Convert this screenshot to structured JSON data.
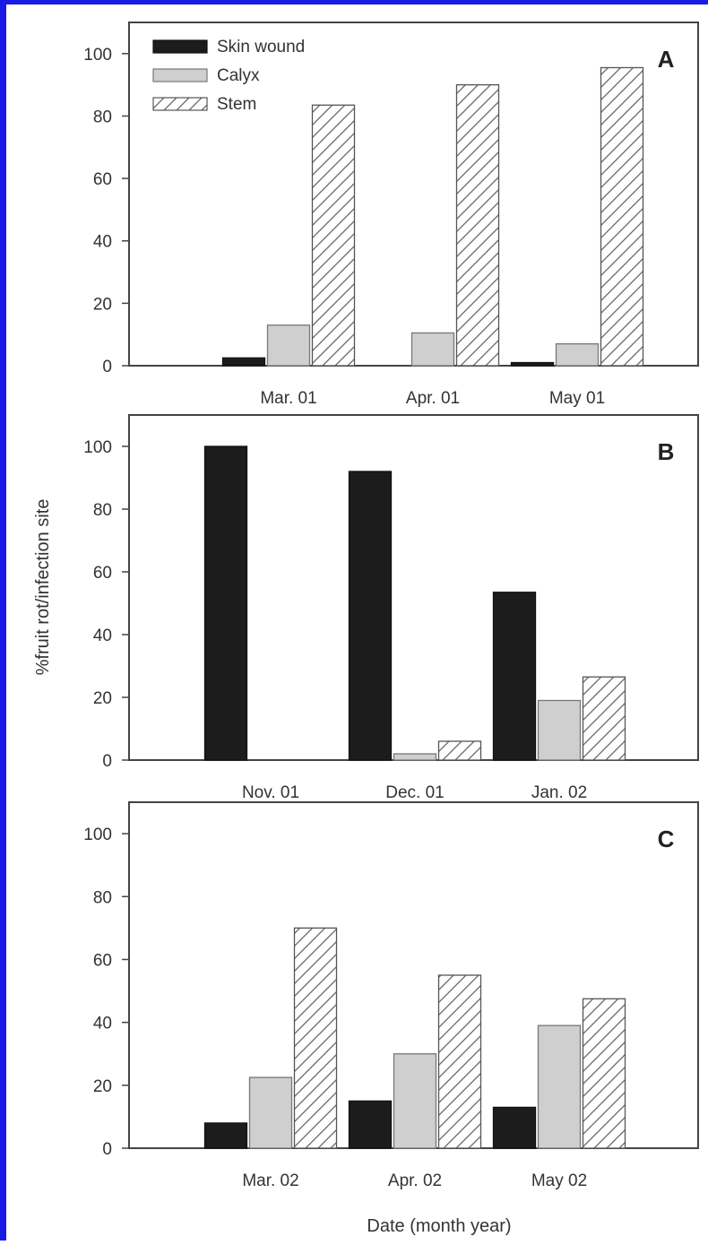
{
  "colors": {
    "skin_wound": "#1c1c1c",
    "calyx": "#cfcfcf",
    "stem": "#ffffff",
    "stem_hatch": "#666666",
    "axis": "#444444",
    "frame": "#1a1ae6"
  },
  "chart_data": [
    {
      "type": "bar",
      "panel": "A",
      "categories": [
        "Mar. 01",
        "Apr. 01",
        "May 01"
      ],
      "series": [
        {
          "name": "Skin wound",
          "values": [
            2.5,
            0,
            1
          ]
        },
        {
          "name": "Calyx",
          "values": [
            13,
            10.5,
            7
          ]
        },
        {
          "name": "Stem",
          "values": [
            83.5,
            90,
            95.5
          ]
        }
      ],
      "ylim": [
        0,
        110
      ],
      "yticks": [
        "0",
        "20",
        "40",
        "60",
        "80",
        "100"
      ],
      "legend": {
        "position": "top-left",
        "entries": [
          "Skin wound",
          "Calyx",
          "Stem"
        ]
      }
    },
    {
      "type": "bar",
      "panel": "B",
      "categories": [
        "Nov. 01",
        "Dec. 01",
        "Jan. 02"
      ],
      "series": [
        {
          "name": "Skin wound",
          "values": [
            100,
            92,
            53.5
          ]
        },
        {
          "name": "Calyx",
          "values": [
            0,
            2,
            19
          ]
        },
        {
          "name": "Stem",
          "values": [
            0,
            6,
            26.5
          ]
        }
      ],
      "ylim": [
        0,
        110
      ],
      "yticks": [
        "0",
        "20",
        "40",
        "60",
        "80",
        "100"
      ]
    },
    {
      "type": "bar",
      "panel": "C",
      "categories": [
        "Mar. 02",
        "Apr. 02",
        "May 02"
      ],
      "series": [
        {
          "name": "Skin wound",
          "values": [
            8,
            15,
            13
          ]
        },
        {
          "name": "Calyx",
          "values": [
            22.5,
            30,
            39
          ]
        },
        {
          "name": "Stem",
          "values": [
            70,
            55,
            47.5
          ]
        }
      ],
      "ylim": [
        0,
        110
      ],
      "yticks": [
        "0",
        "20",
        "40",
        "60",
        "80",
        "100"
      ]
    }
  ],
  "ylabel": "%fruit rot/infection site",
  "xlabel": "Date (month year)"
}
